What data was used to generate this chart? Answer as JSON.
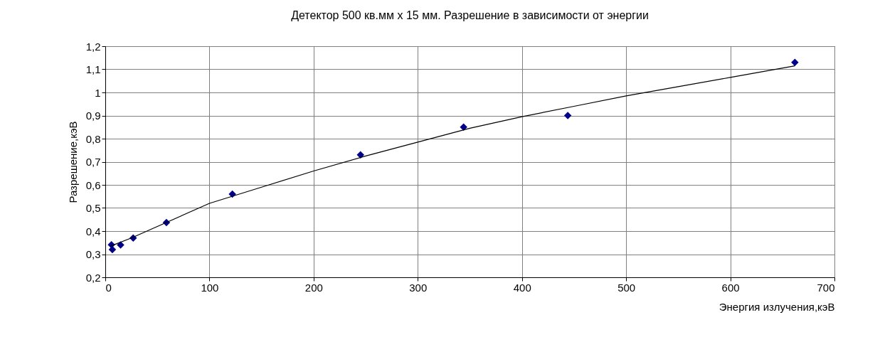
{
  "chart_data": {
    "type": "scatter",
    "title": "Детектор 500 кв.мм х 15 мм. Разрешение в зависимости от энергии",
    "xlabel": "Энергия излучения,кэВ",
    "ylabel": "Разрешение,кэВ",
    "series": [
      {
        "color": "#00008b",
        "marker": "diamond",
        "x": [
          5.9,
          6.8,
          14.7,
          26.8,
          58.7,
          122,
          245,
          344,
          444,
          662
        ],
        "values": [
          0.341,
          0.32,
          0.34,
          0.37,
          0.437,
          0.56,
          0.73,
          0.85,
          0.9,
          1.13
        ]
      },
      {
        "type": "line",
        "color": "#000000",
        "marker": "none",
        "x": [
          5,
          25,
          50,
          100,
          150,
          200,
          250,
          300,
          350,
          400,
          450,
          500,
          550,
          600,
          662
        ],
        "values": [
          0.335,
          0.37,
          0.42,
          0.52,
          0.59,
          0.66,
          0.725,
          0.785,
          0.845,
          0.895,
          0.94,
          0.985,
          1.025,
          1.065,
          1.115
        ]
      }
    ],
    "xlim": [
      0,
      700
    ],
    "xticks": [
      0,
      100,
      200,
      300,
      400,
      500,
      600,
      700
    ],
    "ylim": [
      0.2,
      1.2
    ],
    "yticks": [
      {
        "value": 0.2,
        "label": "0,2"
      },
      {
        "value": 0.3,
        "label": "0,3"
      },
      {
        "value": 0.4,
        "label": "0,4"
      },
      {
        "value": 0.5,
        "label": "0,5"
      },
      {
        "value": 0.6,
        "label": "0,6"
      },
      {
        "value": 0.7,
        "label": "0,7"
      },
      {
        "value": 0.8,
        "label": "0,8"
      },
      {
        "value": 0.9,
        "label": "0,9"
      },
      1,
      {
        "value": 1.1,
        "label": "1,1"
      },
      {
        "value": 1.2,
        "label": "1,2"
      }
    ],
    "grid": true
  }
}
